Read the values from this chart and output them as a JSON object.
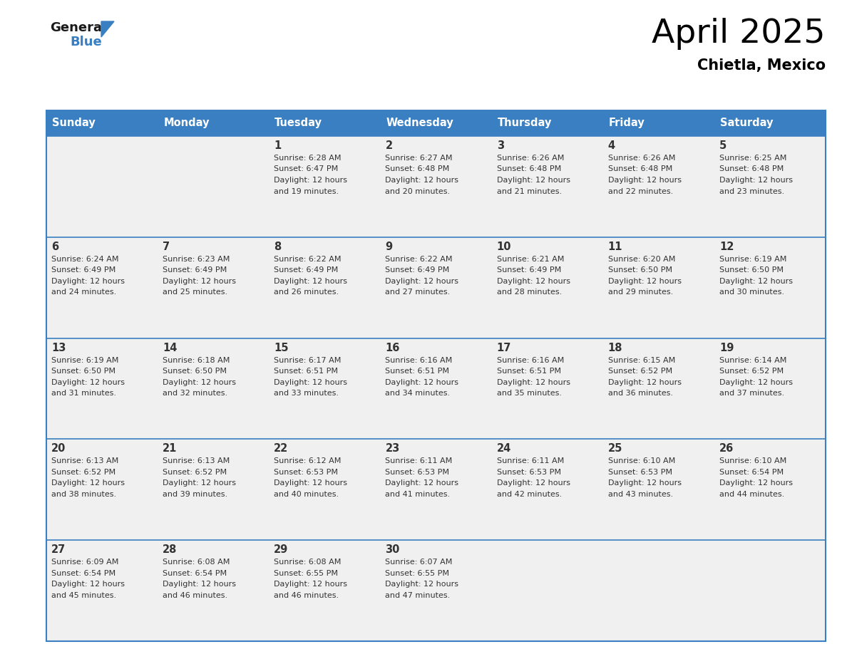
{
  "title": "April 2025",
  "subtitle": "Chietla, Mexico",
  "header_bg_color": "#3A7FC1",
  "header_text_color": "#FFFFFF",
  "cell_bg_color": "#F0F0F0",
  "border_color": "#3A7FC1",
  "text_color": "#333333",
  "days_of_week": [
    "Sunday",
    "Monday",
    "Tuesday",
    "Wednesday",
    "Thursday",
    "Friday",
    "Saturday"
  ],
  "fig_width": 11.88,
  "fig_height": 9.18,
  "dpi": 100,
  "calendar_data": [
    [
      {
        "day": null,
        "sunrise": null,
        "sunset": null,
        "daylight_min": null
      },
      {
        "day": null,
        "sunrise": null,
        "sunset": null,
        "daylight_min": null
      },
      {
        "day": 1,
        "sunrise": "6:28 AM",
        "sunset": "6:47 PM",
        "daylight_min": 19
      },
      {
        "day": 2,
        "sunrise": "6:27 AM",
        "sunset": "6:48 PM",
        "daylight_min": 20
      },
      {
        "day": 3,
        "sunrise": "6:26 AM",
        "sunset": "6:48 PM",
        "daylight_min": 21
      },
      {
        "day": 4,
        "sunrise": "6:26 AM",
        "sunset": "6:48 PM",
        "daylight_min": 22
      },
      {
        "day": 5,
        "sunrise": "6:25 AM",
        "sunset": "6:48 PM",
        "daylight_min": 23
      }
    ],
    [
      {
        "day": 6,
        "sunrise": "6:24 AM",
        "sunset": "6:49 PM",
        "daylight_min": 24
      },
      {
        "day": 7,
        "sunrise": "6:23 AM",
        "sunset": "6:49 PM",
        "daylight_min": 25
      },
      {
        "day": 8,
        "sunrise": "6:22 AM",
        "sunset": "6:49 PM",
        "daylight_min": 26
      },
      {
        "day": 9,
        "sunrise": "6:22 AM",
        "sunset": "6:49 PM",
        "daylight_min": 27
      },
      {
        "day": 10,
        "sunrise": "6:21 AM",
        "sunset": "6:49 PM",
        "daylight_min": 28
      },
      {
        "day": 11,
        "sunrise": "6:20 AM",
        "sunset": "6:50 PM",
        "daylight_min": 29
      },
      {
        "day": 12,
        "sunrise": "6:19 AM",
        "sunset": "6:50 PM",
        "daylight_min": 30
      }
    ],
    [
      {
        "day": 13,
        "sunrise": "6:19 AM",
        "sunset": "6:50 PM",
        "daylight_min": 31
      },
      {
        "day": 14,
        "sunrise": "6:18 AM",
        "sunset": "6:50 PM",
        "daylight_min": 32
      },
      {
        "day": 15,
        "sunrise": "6:17 AM",
        "sunset": "6:51 PM",
        "daylight_min": 33
      },
      {
        "day": 16,
        "sunrise": "6:16 AM",
        "sunset": "6:51 PM",
        "daylight_min": 34
      },
      {
        "day": 17,
        "sunrise": "6:16 AM",
        "sunset": "6:51 PM",
        "daylight_min": 35
      },
      {
        "day": 18,
        "sunrise": "6:15 AM",
        "sunset": "6:52 PM",
        "daylight_min": 36
      },
      {
        "day": 19,
        "sunrise": "6:14 AM",
        "sunset": "6:52 PM",
        "daylight_min": 37
      }
    ],
    [
      {
        "day": 20,
        "sunrise": "6:13 AM",
        "sunset": "6:52 PM",
        "daylight_min": 38
      },
      {
        "day": 21,
        "sunrise": "6:13 AM",
        "sunset": "6:52 PM",
        "daylight_min": 39
      },
      {
        "day": 22,
        "sunrise": "6:12 AM",
        "sunset": "6:53 PM",
        "daylight_min": 40
      },
      {
        "day": 23,
        "sunrise": "6:11 AM",
        "sunset": "6:53 PM",
        "daylight_min": 41
      },
      {
        "day": 24,
        "sunrise": "6:11 AM",
        "sunset": "6:53 PM",
        "daylight_min": 42
      },
      {
        "day": 25,
        "sunrise": "6:10 AM",
        "sunset": "6:53 PM",
        "daylight_min": 43
      },
      {
        "day": 26,
        "sunrise": "6:10 AM",
        "sunset": "6:54 PM",
        "daylight_min": 44
      }
    ],
    [
      {
        "day": 27,
        "sunrise": "6:09 AM",
        "sunset": "6:54 PM",
        "daylight_min": 45
      },
      {
        "day": 28,
        "sunrise": "6:08 AM",
        "sunset": "6:54 PM",
        "daylight_min": 46
      },
      {
        "day": 29,
        "sunrise": "6:08 AM",
        "sunset": "6:55 PM",
        "daylight_min": 46
      },
      {
        "day": 30,
        "sunrise": "6:07 AM",
        "sunset": "6:55 PM",
        "daylight_min": 47
      },
      {
        "day": null,
        "sunrise": null,
        "sunset": null,
        "daylight_min": null
      },
      {
        "day": null,
        "sunrise": null,
        "sunset": null,
        "daylight_min": null
      },
      {
        "day": null,
        "sunrise": null,
        "sunset": null,
        "daylight_min": null
      }
    ]
  ]
}
